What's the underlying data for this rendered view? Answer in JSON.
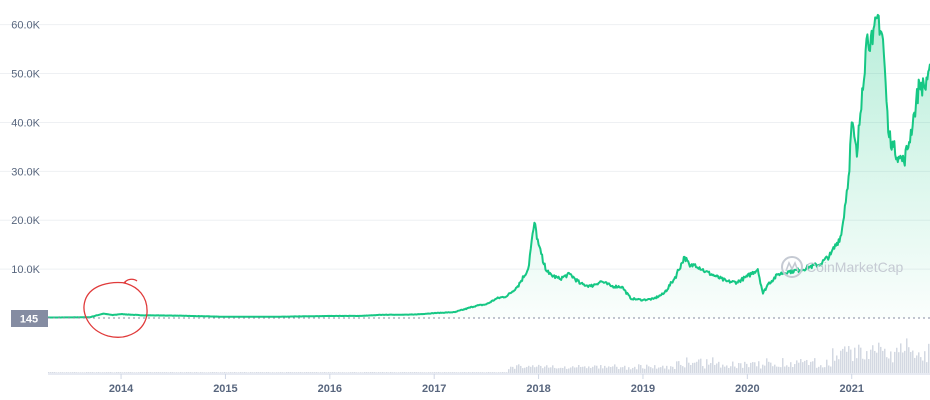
{
  "chart_data": {
    "type": "area",
    "title": "",
    "xlabel": "",
    "ylabel": "",
    "x_ticks": [
      "2014",
      "2015",
      "2016",
      "2017",
      "2018",
      "2019",
      "2020",
      "2021"
    ],
    "y_ticks": [
      "10.0K",
      "20.0K",
      "30.0K",
      "40.0K",
      "50.0K",
      "60.0K"
    ],
    "y_tick_values": [
      10000,
      20000,
      30000,
      40000,
      50000,
      60000
    ],
    "xlim": [
      2013.3,
      2021.75
    ],
    "ylim": [
      0,
      63000
    ],
    "grid": "horizontal",
    "current_price_label": "145",
    "watermark": "CoinMarketCap",
    "colors": {
      "line": "#16c784",
      "area_top": "#16c784",
      "volume": "#d3d8e2",
      "price_badge": "#858ca2",
      "annotation": "#e03a3a"
    },
    "series": [
      {
        "x": [
          2013.3,
          2013.5,
          2013.7,
          2013.83,
          2013.92,
          2014.0,
          2014.2,
          2014.5,
          2014.8,
          2015.0,
          2015.5,
          2016.0,
          2016.3,
          2016.5,
          2016.8,
          2017.0,
          2017.2,
          2017.4,
          2017.5,
          2017.6,
          2017.7,
          2017.8,
          2017.9,
          2017.96,
          2018.0,
          2018.05,
          2018.1,
          2018.2,
          2018.3,
          2018.4,
          2018.5,
          2018.6,
          2018.7,
          2018.8,
          2018.88,
          2018.95,
          2019.0,
          2019.1,
          2019.2,
          2019.3,
          2019.4,
          2019.45,
          2019.5,
          2019.6,
          2019.7,
          2019.8,
          2019.9,
          2020.0,
          2020.1,
          2020.15,
          2020.2,
          2020.3,
          2020.4,
          2020.5,
          2020.6,
          2020.7,
          2020.8,
          2020.9,
          2020.97,
          2021.0,
          2021.05,
          2021.1,
          2021.15,
          2021.2,
          2021.25,
          2021.3,
          2021.35,
          2021.4,
          2021.45,
          2021.5,
          2021.55,
          2021.6,
          2021.65,
          2021.7,
          2021.75
        ],
        "values": [
          100,
          120,
          150,
          900,
          600,
          800,
          550,
          500,
          350,
          250,
          250,
          420,
          430,
          650,
          700,
          1000,
          1200,
          2500,
          2800,
          4000,
          4500,
          6500,
          10000,
          19500,
          15000,
          11000,
          9000,
          8000,
          9000,
          7000,
          6500,
          7500,
          6500,
          6400,
          4000,
          3800,
          3700,
          3900,
          5000,
          8000,
          12500,
          10500,
          11000,
          9500,
          8500,
          7500,
          7300,
          8500,
          10000,
          5000,
          7000,
          9000,
          9500,
          9800,
          10500,
          11000,
          13000,
          17000,
          29000,
          40000,
          33000,
          47000,
          58000,
          56000,
          62000,
          57000,
          38000,
          35000,
          33000,
          32000,
          36000,
          42000,
          48000,
          47000,
          52000
        ]
      }
    ]
  }
}
